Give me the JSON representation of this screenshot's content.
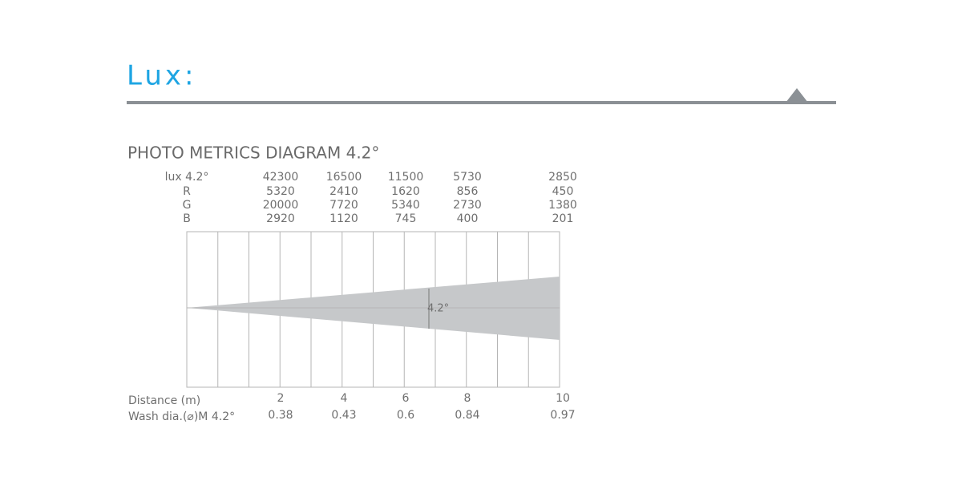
{
  "header": {
    "title": "Lux:"
  },
  "diagram": {
    "title": "PHOTO METRICS DIAGRAM 4.2°",
    "rows": [
      {
        "label": "lux 4.2°",
        "values": [
          42300,
          16500,
          11500,
          5730,
          2850
        ]
      },
      {
        "label": "R",
        "values": [
          5320,
          2410,
          1620,
          856,
          450
        ]
      },
      {
        "label": "G",
        "values": [
          20000,
          7720,
          5340,
          2730,
          1380
        ]
      },
      {
        "label": "B",
        "values": [
          2920,
          1120,
          745,
          400,
          201
        ]
      }
    ],
    "distance": {
      "label": "Distance (m)",
      "values": [
        2,
        4,
        6,
        8,
        10
      ]
    },
    "wash": {
      "label": "Wash dia.(⌀)M 4.2°",
      "values": [
        0.38,
        0.43,
        0.6,
        0.84,
        0.97
      ]
    },
    "beam_angle": "4.2°"
  }
}
